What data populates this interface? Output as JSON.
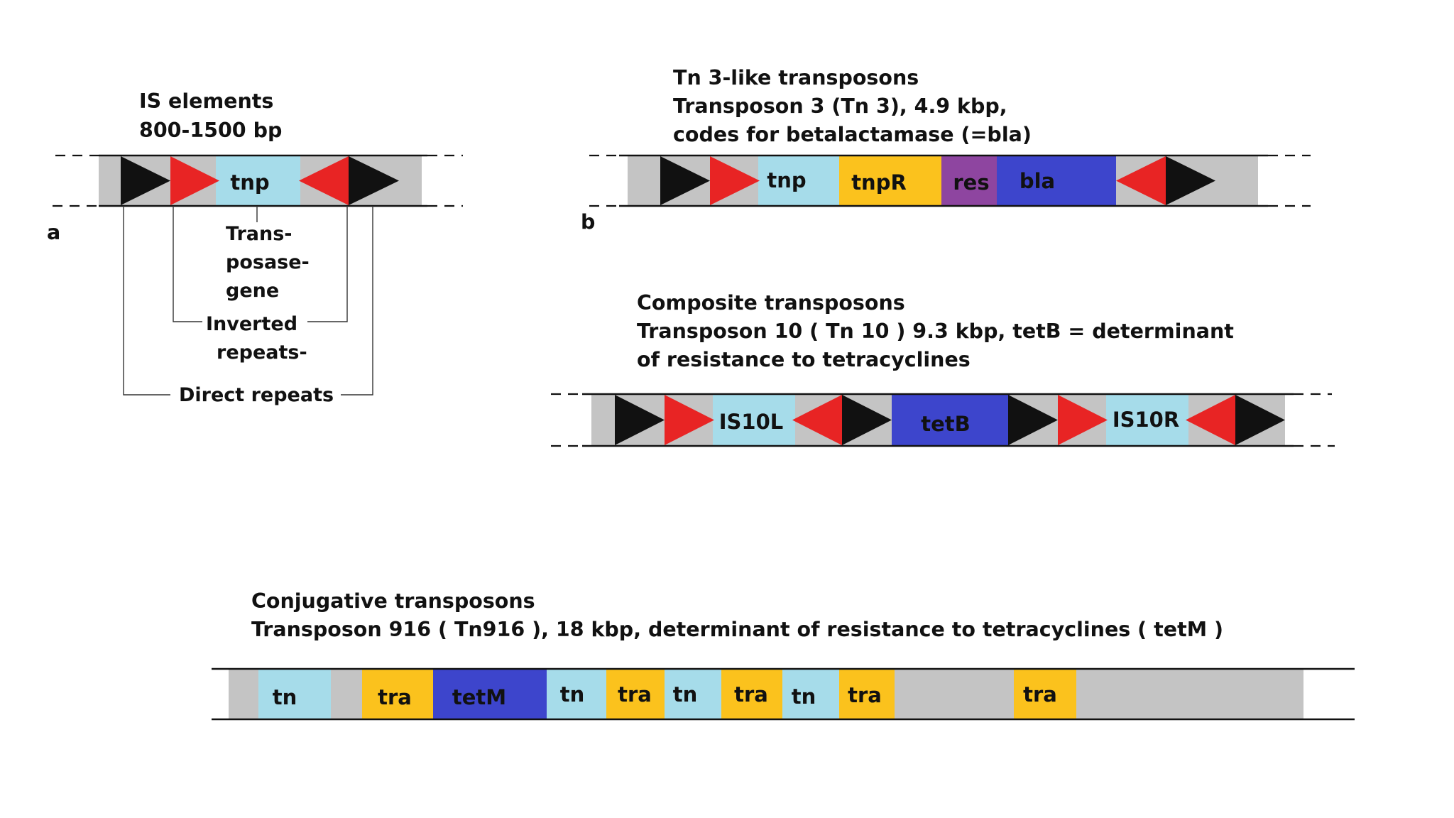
{
  "colors": {
    "backbone": "#c4c4c4",
    "tnp": "#a6dcea",
    "tnpR": "#fbc21d",
    "res": "#8e45a0",
    "gene": "#3d45cc",
    "tra": "#fbc21d",
    "inverted_repeat": "#e82424",
    "direct_repeat": "#111111"
  },
  "panel_a": {
    "title_line1": "IS elements",
    "title_line2": "800-1500 bp",
    "letter": "a",
    "tnp": "tnp",
    "transposase_1": "Trans-",
    "transposase_2": "posase-",
    "transposase_3": "gene",
    "inverted_1": "Inverted",
    "inverted_2": "repeats-",
    "direct": "Direct repeats"
  },
  "panel_b": {
    "title_line1": "Tn 3-like transposons",
    "title_line2": "Transposon 3 (Tn 3), 4.9 kbp,",
    "title_line3": "codes for betalactamase (=bla)",
    "letter": "b",
    "tnp": "tnp",
    "tnpR": "tnpR",
    "res": "res",
    "bla": "bla"
  },
  "panel_composite": {
    "title_line1": "Composite transposons",
    "title_line2": "Transposon 10 ( Tn 10 ) 9.3 kbp, tetB = determinant",
    "title_line3": "of resistance to tetracyclines",
    "is10l": "IS10L",
    "tetb": "tetB",
    "is10r": "IS10R"
  },
  "panel_conjugative": {
    "title_line1": "Conjugative transposons",
    "title_line2": "Transposon 916 ( Tn916 ), 18 kbp, determinant of resistance to tetracyclines ( tetM )",
    "seg1": "tn",
    "seg2": "tra",
    "seg3": "tetM",
    "seg4": "tn",
    "seg5": "tra",
    "seg6": "tn",
    "seg7": "tra",
    "seg8": "tn",
    "seg9": "tra",
    "seg10": "tra"
  }
}
